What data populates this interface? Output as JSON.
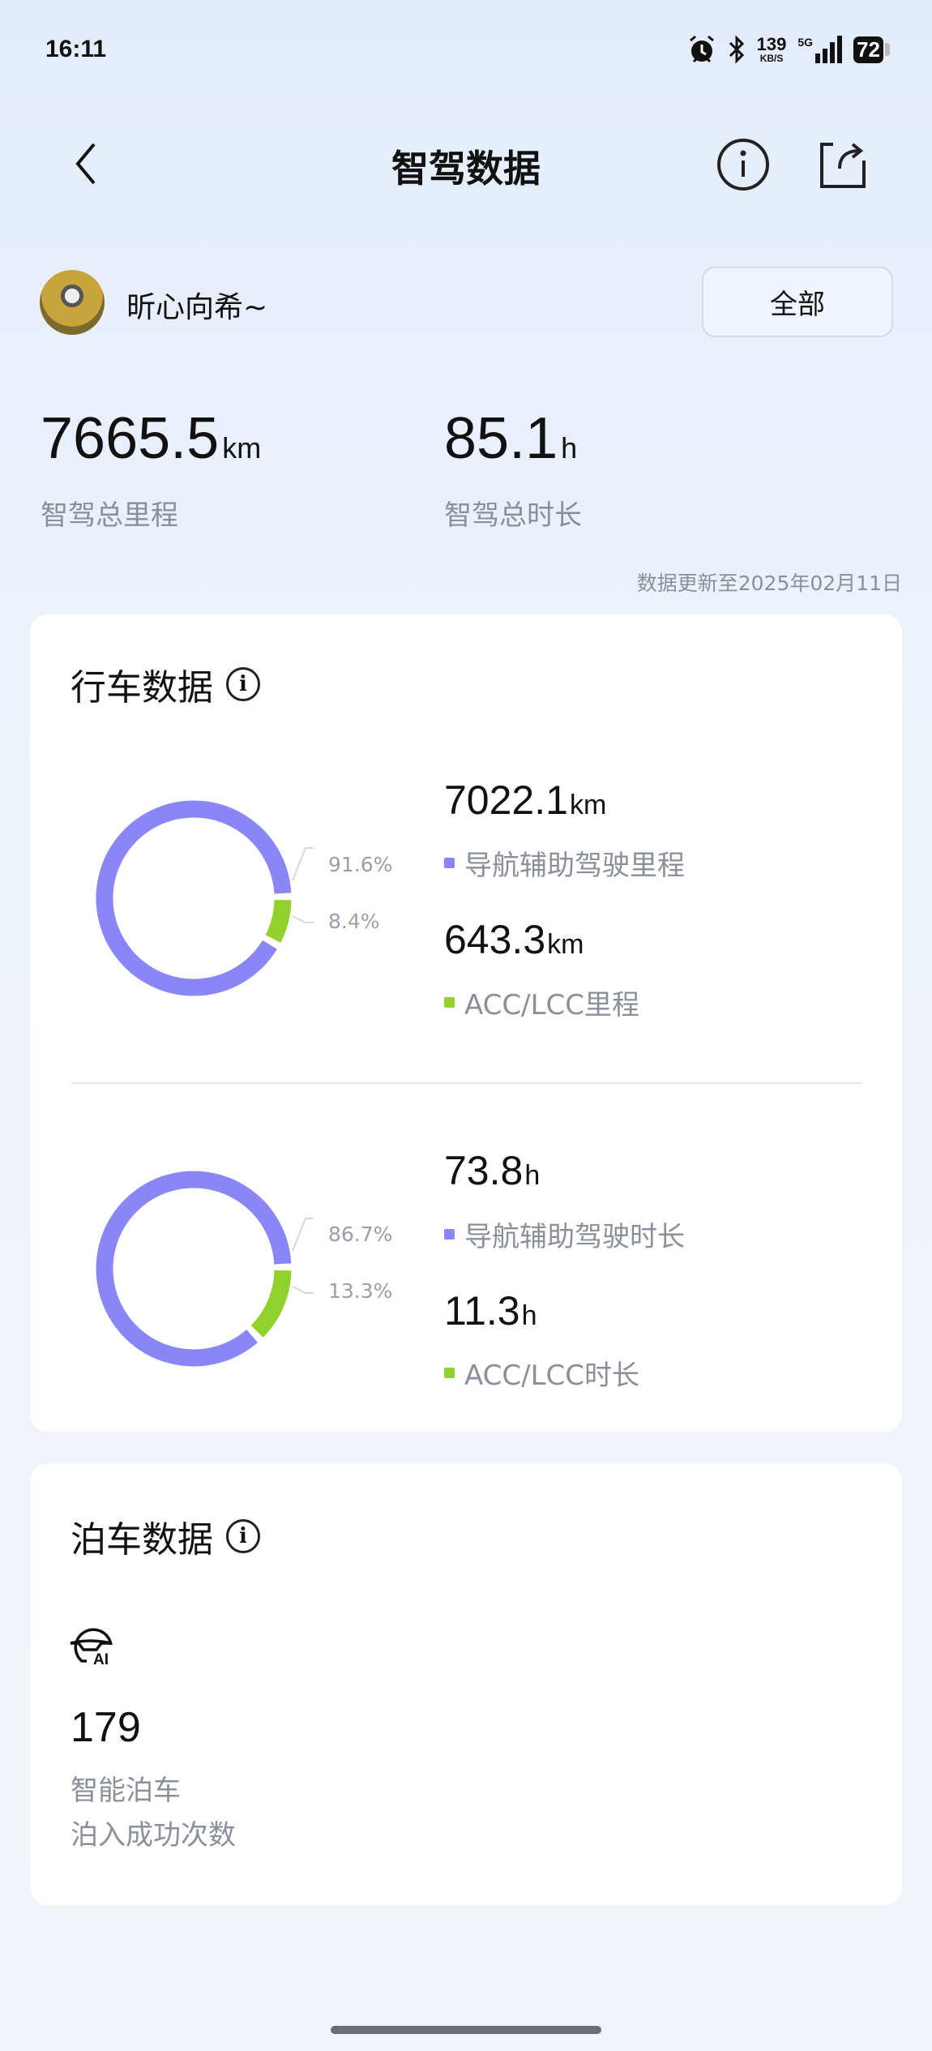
{
  "status_bar": {
    "time": "16:11",
    "speed": "139",
    "speed_unit": "KB/S",
    "network": "5G",
    "battery": "72"
  },
  "header": {
    "title": "智驾数据",
    "back_icon": "chevron-left-icon",
    "info_icon": "info-icon",
    "share_icon": "share-icon"
  },
  "user": {
    "name": "昕心向希~",
    "filter_label": "全部"
  },
  "summary": {
    "distance_value": "7665.5",
    "distance_unit": "km",
    "distance_label": "智驾总里程",
    "duration_value": "85.1",
    "duration_unit": "h",
    "duration_label": "智驾总时长",
    "updated": "数据更新至2025年02月11日"
  },
  "colors": {
    "nav": "#8b86f8",
    "acc": "#92d12c"
  },
  "driving": {
    "title": "行车数据",
    "mileage": {
      "nav_value": "7022.1",
      "nav_unit": "km",
      "nav_label": "导航辅助驾驶里程",
      "nav_pct": "91.6%",
      "acc_value": "643.3",
      "acc_unit": "km",
      "acc_label": "ACC/LCC里程",
      "acc_pct": "8.4%",
      "nav_fraction": 0.916,
      "acc_fraction": 0.084
    },
    "duration": {
      "nav_value": "73.8",
      "nav_unit": "h",
      "nav_label": "导航辅助驾驶时长",
      "nav_pct": "86.7%",
      "acc_value": "11.3",
      "acc_unit": "h",
      "acc_label": "ACC/LCC时长",
      "acc_pct": "13.3%",
      "nav_fraction": 0.867,
      "acc_fraction": 0.133
    }
  },
  "parking": {
    "title": "泊车数据",
    "icon": "ai-parking-icon",
    "count": "179",
    "label_1": "智能泊车",
    "label_2": "泊入成功次数"
  }
}
